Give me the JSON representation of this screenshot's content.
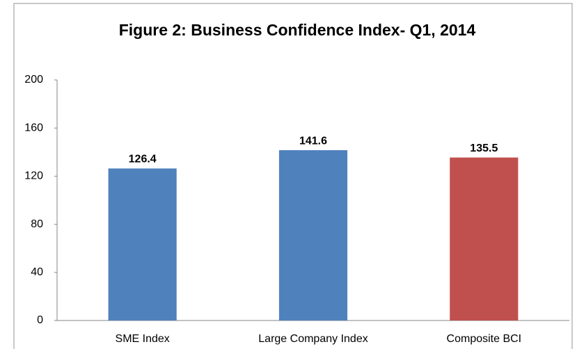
{
  "chart_data": {
    "type": "bar",
    "title": "Figure 2: Business Confidence Index- Q1, 2014",
    "categories": [
      "SME Index",
      "Large Company Index",
      "Composite BCI"
    ],
    "values": [
      126.4,
      141.6,
      135.5
    ],
    "colors": [
      "#4f81bd",
      "#4f81bd",
      "#c0504d"
    ],
    "ylim": [
      0,
      200
    ],
    "yticks": [
      0,
      40,
      80,
      120,
      160,
      200
    ],
    "grid": false
  }
}
